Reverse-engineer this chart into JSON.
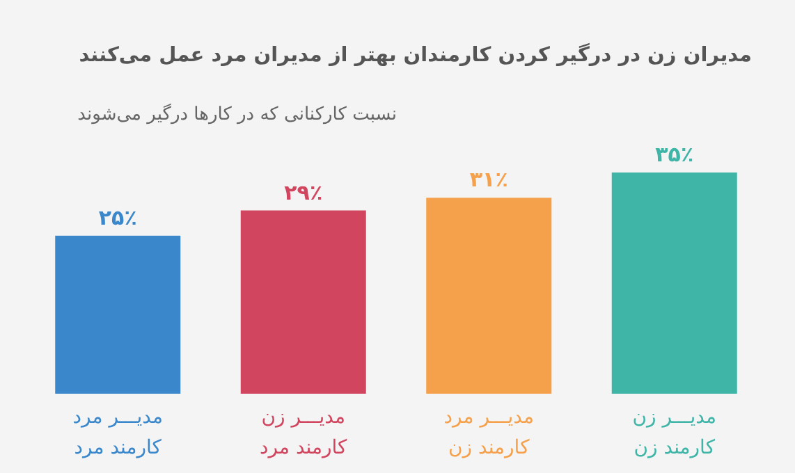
{
  "chart_data": {
    "type": "bar",
    "title": "مدیران زن در درگیر کردن کارمندان بهتر از مدیران مرد عمل می‌کنند",
    "subtitle": "نسبت کارکنانی که در کارها درگیر می‌شوند",
    "categories": [
      "مدیـــر مرد\nکارمند مرد",
      "مدیـــر زن\nکارمند مرد",
      "مدیـــر مرد\nکارمند زن",
      "مدیـــر زن\nکارمند زن"
    ],
    "values": [
      25,
      29,
      31,
      35
    ],
    "colors": [
      "#3a87cb",
      "#d1455f",
      "#f5a04a",
      "#3fb5a8"
    ],
    "value_labels": [
      "۲۵٪",
      "۲۹٪",
      "۳۱٪",
      "۳۵٪"
    ]
  }
}
